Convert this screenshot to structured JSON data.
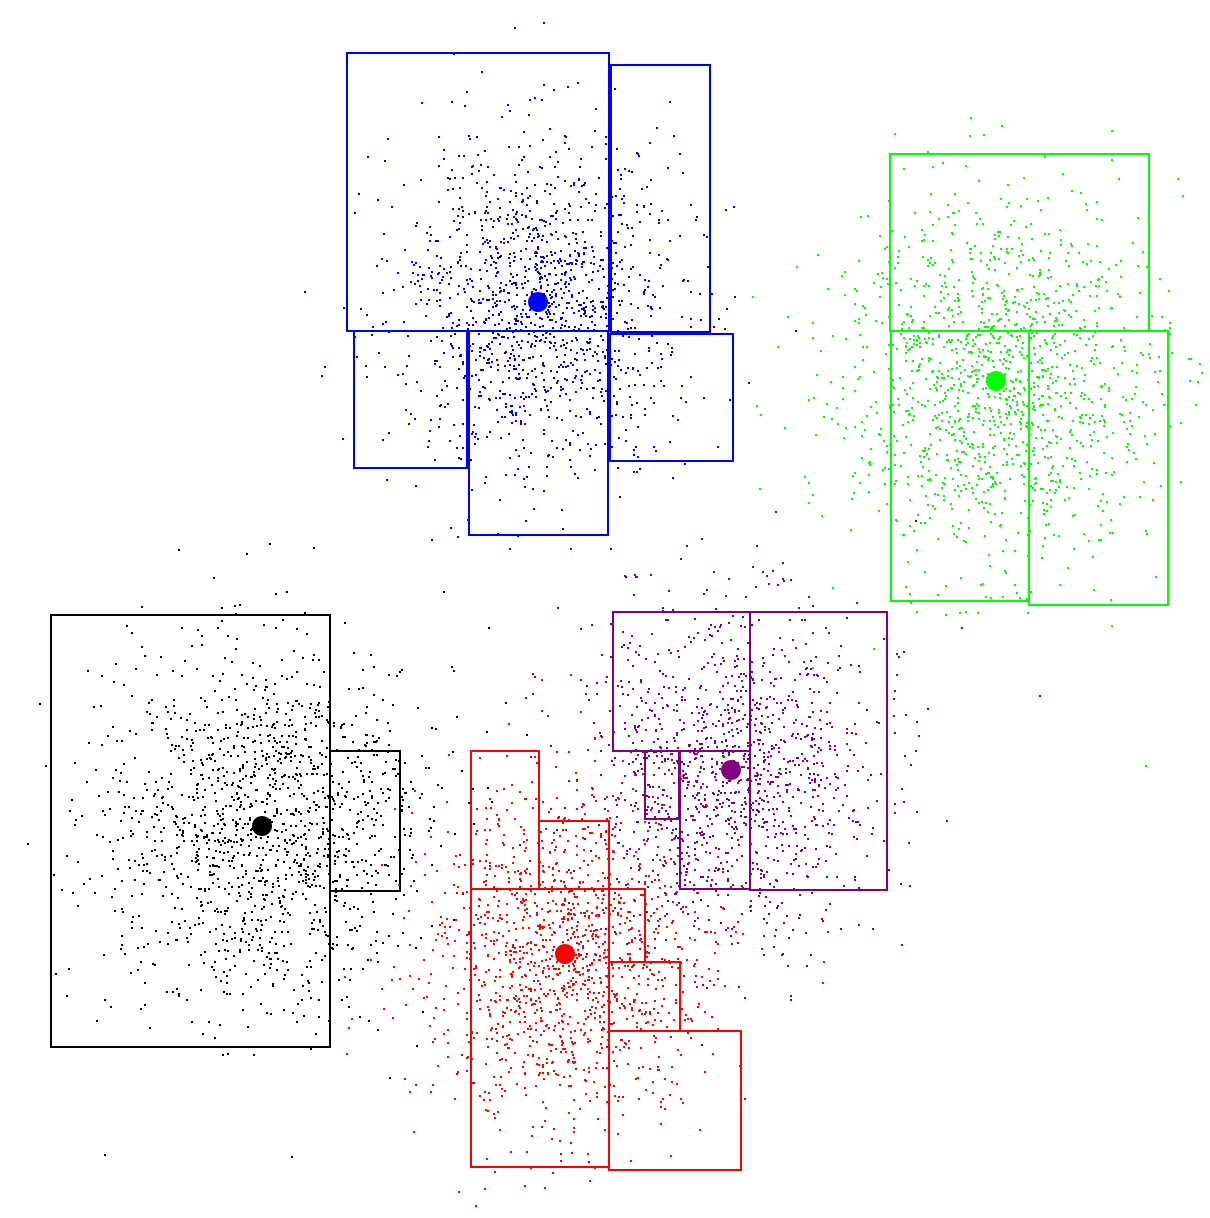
{
  "figure": {
    "background": "#ffffff"
  },
  "chart_data": {
    "type": "scatter",
    "title": "",
    "grid": false,
    "legend": "none",
    "clusters": [
      {
        "id": "blue",
        "color": "#0000ff",
        "center": [
          538,
          302
        ],
        "spread": 72,
        "points": 1400,
        "boxes": [
          [
            347,
            53,
            609,
            331
          ],
          [
            611,
            65,
            710,
            332
          ],
          [
            354,
            331,
            467,
            468
          ],
          [
            469,
            331,
            608,
            535
          ],
          [
            610,
            334,
            733,
            461
          ]
        ]
      },
      {
        "id": "green",
        "color": "#00ff00",
        "center": [
          996,
          381
        ],
        "spread": 78,
        "points": 1400,
        "boxes": [
          [
            890,
            154,
            1149,
            331
          ],
          [
            891,
            331,
            1029,
            601
          ],
          [
            1029,
            331,
            1168,
            605
          ]
        ]
      },
      {
        "id": "black",
        "color": "#000000",
        "center": [
          262,
          826
        ],
        "spread": 80,
        "points": 1500,
        "boxes": [
          [
            51,
            615,
            330,
            1047
          ],
          [
            330,
            751,
            400,
            891
          ]
        ]
      },
      {
        "id": "purple",
        "color": "#800080",
        "center": [
          731,
          770
        ],
        "spread": 72,
        "points": 1300,
        "boxes": [
          [
            613,
            612,
            750,
            751
          ],
          [
            750,
            612,
            887,
            890
          ],
          [
            645,
            751,
            679,
            819
          ],
          [
            680,
            751,
            750,
            889
          ]
        ]
      },
      {
        "id": "red",
        "color": "#ff0000",
        "center": [
          565,
          954
        ],
        "spread": 72,
        "points": 1400,
        "boxes": [
          [
            471,
            751,
            539,
            889
          ],
          [
            539,
            821,
            609,
            889
          ],
          [
            471,
            889,
            609,
            1167
          ],
          [
            609,
            889,
            645,
            962
          ],
          [
            609,
            962,
            680,
            1031
          ],
          [
            609,
            1031,
            741,
            1170
          ]
        ]
      }
    ]
  }
}
